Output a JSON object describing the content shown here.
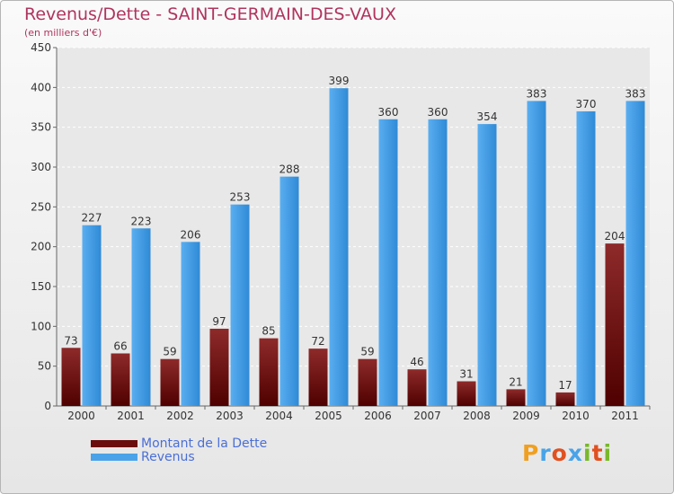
{
  "title": "Revenus/Dette - SAINT-GERMAIN-DES-VAUX",
  "subtitle": "(en milliers d'€)",
  "logo": {
    "text": "Proxiti"
  },
  "colors": {
    "debt": "#7a1414",
    "revenue": "#4aa3e8",
    "title": "#b0345e",
    "legend_text": "#4a6fd6"
  },
  "legend": [
    {
      "label": "Montant de la Dette",
      "color": "#6b0d0d"
    },
    {
      "label": "Revenus",
      "color": "#4aa3e8"
    }
  ],
  "chart_data": {
    "type": "bar",
    "title": "Revenus/Dette - SAINT-GERMAIN-DES-VAUX",
    "subtitle": "(en milliers d'€)",
    "categories": [
      "2000",
      "2001",
      "2002",
      "2003",
      "2004",
      "2005",
      "2006",
      "2007",
      "2008",
      "2009",
      "2010",
      "2011"
    ],
    "series": [
      {
        "name": "Montant de la Dette",
        "values": [
          73,
          66,
          59,
          97,
          85,
          72,
          59,
          46,
          31,
          21,
          17,
          204
        ]
      },
      {
        "name": "Revenus",
        "values": [
          227,
          223,
          206,
          253,
          288,
          399,
          360,
          360,
          354,
          383,
          370,
          383
        ]
      }
    ],
    "ylim": [
      0,
      450
    ],
    "yticks": [
      0,
      50,
      100,
      150,
      200,
      250,
      300,
      350,
      400,
      450
    ],
    "grid": true,
    "legend_position": "bottom-left"
  }
}
